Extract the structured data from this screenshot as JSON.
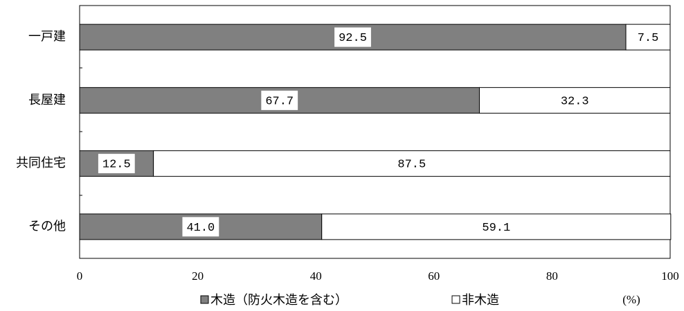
{
  "chart_data": {
    "type": "stacked-barh",
    "categories": [
      "一戸建",
      "長屋建",
      "共同住宅",
      "その他"
    ],
    "series": [
      {
        "name": "木造（防火木造を含む）",
        "color": "#808080",
        "values": [
          92.5,
          67.7,
          12.5,
          41
        ],
        "value_labels": [
          "92.5",
          "67.7",
          "12.5",
          "41.0"
        ]
      },
      {
        "name": "非木造",
        "color": "#ffffff",
        "values": [
          7.5,
          32.3,
          87.5,
          59.1
        ],
        "value_labels": [
          "7.5",
          "32.3",
          "87.5",
          "59.1"
        ]
      }
    ],
    "xlim": [
      0,
      100
    ],
    "xticks": [
      0,
      20,
      40,
      60,
      80,
      100
    ],
    "xlabel": "(%)"
  }
}
